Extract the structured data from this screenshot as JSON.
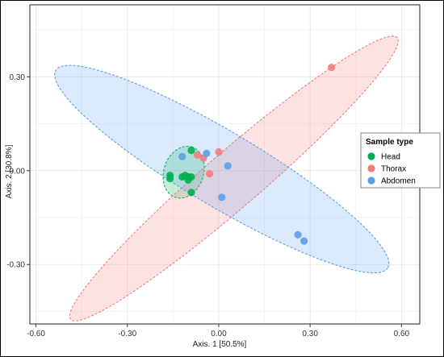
{
  "chart_data": {
    "type": "scatter",
    "xlabel": "Axis. 1   [50.5%]",
    "ylabel": "Axis. 2   [30.8%]",
    "xlim": [
      -0.62,
      0.66
    ],
    "ylim": [
      -0.49,
      0.53
    ],
    "x_ticks": [
      -0.6,
      -0.3,
      0.0,
      0.3,
      0.6
    ],
    "x_tick_labels": [
      "-0.60",
      "-0.30",
      "0.00",
      "0.30",
      "0.60"
    ],
    "y_ticks": [
      -0.3,
      0.0,
      0.3
    ],
    "y_tick_labels": [
      "-0.30",
      "0.00",
      "0.30"
    ],
    "grid": true,
    "legend": {
      "title": "Sample type",
      "placement": "right"
    },
    "series": [
      {
        "name": "Head",
        "color": "#00b050",
        "points": [
          [
            -0.09,
            0.065
          ],
          [
            -0.16,
            -0.015
          ],
          [
            -0.16,
            -0.025
          ],
          [
            -0.1,
            -0.02
          ],
          [
            -0.09,
            -0.02
          ],
          [
            -0.11,
            -0.015
          ],
          [
            -0.1,
            -0.03
          ],
          [
            -0.09,
            -0.07
          ],
          [
            -0.12,
            -0.02
          ]
        ],
        "ellipse": {
          "center": [
            -0.115,
            -0.005
          ],
          "semi_major": 0.085,
          "semi_minor": 0.065,
          "angle_deg": 70
        }
      },
      {
        "name": "Thorax",
        "color": "#f47c7c",
        "points": [
          [
            0.37,
            0.33
          ],
          [
            0.0,
            0.06
          ],
          [
            -0.07,
            0.05
          ],
          [
            -0.05,
            0.04
          ],
          [
            -0.03,
            -0.01
          ]
        ],
        "ellipse": {
          "center": [
            0.05,
            -0.025
          ],
          "semi_major": 0.7,
          "semi_minor": 0.09,
          "angle_deg": 40
        }
      },
      {
        "name": "Abdomen",
        "color": "#5aa0e8",
        "points": [
          [
            -0.12,
            0.045
          ],
          [
            -0.04,
            0.055
          ],
          [
            0.03,
            0.015
          ],
          [
            0.01,
            -0.085
          ],
          [
            0.26,
            -0.205
          ],
          [
            0.28,
            -0.225
          ]
        ],
        "ellipse": {
          "center": [
            0.01,
            0.005
          ],
          "semi_major": 0.63,
          "semi_minor": 0.12,
          "angle_deg": -30
        }
      }
    ]
  }
}
